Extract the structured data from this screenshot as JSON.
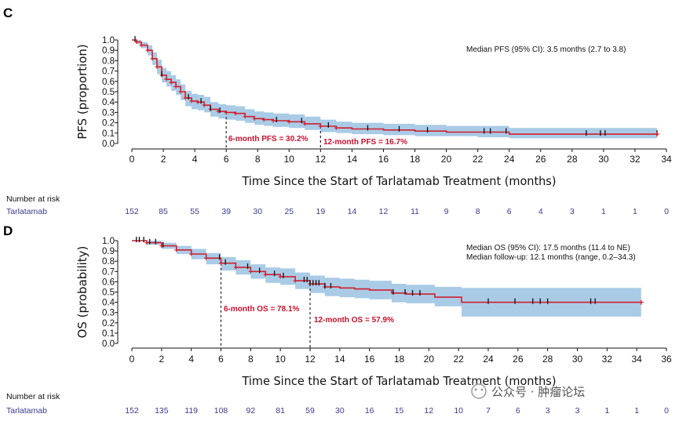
{
  "risk_table_title": "Number at risk",
  "watermark": "公众号 · 肿瘤论坛",
  "colors": {
    "curve": "#d21f2d",
    "band": "#a9cbe6",
    "censor": "#111111",
    "risk_text": "#3b3b8f"
  },
  "chart_data": [
    {
      "panel": "C",
      "type": "line",
      "subtype": "kaplan-meier",
      "xlabel": "Time Since the Start of Tarlatamab Treatment (months)",
      "ylabel": "PFS (proportion)",
      "xlim": [
        0,
        34
      ],
      "ylim": [
        0,
        1.0
      ],
      "xticks": [
        0,
        2,
        4,
        6,
        8,
        10,
        12,
        14,
        16,
        18,
        20,
        22,
        24,
        26,
        28,
        30,
        32,
        34
      ],
      "yticks": [
        0,
        0.1,
        0.2,
        0.3,
        0.4,
        0.5,
        0.6,
        0.7,
        0.8,
        0.9,
        1.0
      ],
      "annotations": [
        "Median PFS (95% CI): 3.5 months (2.7 to 3.8)"
      ],
      "milestones": [
        {
          "x": 6,
          "y": 0.302,
          "label": "6-month PFS = 30.2%"
        },
        {
          "x": 12,
          "y": 0.167,
          "label": "12-month PFS = 16.7%"
        }
      ],
      "series": [
        {
          "x": [
            0,
            0.3,
            0.6,
            1.0,
            1.3,
            1.6,
            1.9,
            2.2,
            2.5,
            2.8,
            3.1,
            3.4,
            3.8,
            4.2,
            4.6,
            5.0,
            5.5,
            6.0,
            6.6,
            7.2,
            7.8,
            8.4,
            9.0,
            10.0,
            11.0,
            12.0,
            13.0,
            14.0,
            16.0,
            18.0,
            20.0,
            22.0,
            24.0,
            26.0,
            28.0,
            30.0,
            32.0,
            33.4
          ],
          "y": [
            1.0,
            0.98,
            0.95,
            0.9,
            0.82,
            0.74,
            0.66,
            0.62,
            0.59,
            0.55,
            0.5,
            0.44,
            0.41,
            0.4,
            0.37,
            0.33,
            0.31,
            0.3,
            0.29,
            0.26,
            0.24,
            0.23,
            0.22,
            0.21,
            0.19,
            0.167,
            0.15,
            0.14,
            0.13,
            0.12,
            0.11,
            0.11,
            0.09,
            0.09,
            0.09,
            0.09,
            0.09,
            0.09
          ],
          "lower": [
            1.0,
            0.96,
            0.92,
            0.85,
            0.76,
            0.67,
            0.59,
            0.55,
            0.51,
            0.47,
            0.42,
            0.36,
            0.33,
            0.32,
            0.3,
            0.26,
            0.24,
            0.23,
            0.22,
            0.2,
            0.18,
            0.17,
            0.16,
            0.15,
            0.13,
            0.11,
            0.1,
            0.09,
            0.08,
            0.07,
            0.07,
            0.06,
            0.05,
            0.05,
            0.05,
            0.05,
            0.05,
            0.05
          ],
          "upper": [
            1.0,
            1.0,
            0.98,
            0.95,
            0.88,
            0.81,
            0.73,
            0.7,
            0.66,
            0.62,
            0.57,
            0.51,
            0.48,
            0.47,
            0.45,
            0.4,
            0.38,
            0.37,
            0.36,
            0.33,
            0.31,
            0.3,
            0.29,
            0.28,
            0.26,
            0.23,
            0.21,
            0.2,
            0.19,
            0.18,
            0.17,
            0.17,
            0.15,
            0.15,
            0.15,
            0.15,
            0.15,
            0.15
          ]
        }
      ],
      "censor_x": [
        0.2,
        1.9,
        3.6,
        4.4,
        5.0,
        5.6,
        9.2,
        10.8,
        12.5,
        15.0,
        17.0,
        18.8,
        22.4,
        22.8,
        23.8,
        28.9,
        29.8,
        30.1,
        33.4
      ],
      "risk_table": {
        "group": "Tarlatamab",
        "times": [
          0,
          2,
          4,
          6,
          8,
          10,
          12,
          14,
          16,
          18,
          20,
          22,
          24,
          26,
          28,
          30,
          32,
          34
        ],
        "counts": [
          "152",
          "85",
          "55",
          "39",
          "30",
          "25",
          "19",
          "14",
          "12",
          "11",
          "9",
          "8",
          "6",
          "4",
          "3",
          "1",
          "1",
          "0"
        ]
      }
    },
    {
      "panel": "D",
      "type": "line",
      "subtype": "kaplan-meier",
      "xlabel": "Time Since the Start of Tarlatamab Treatment (months)",
      "ylabel": "OS (probability)",
      "xlim": [
        0,
        36
      ],
      "ylim": [
        0,
        1.0
      ],
      "xticks": [
        0,
        2,
        4,
        6,
        8,
        10,
        12,
        14,
        16,
        18,
        20,
        22,
        24,
        26,
        28,
        30,
        32,
        34,
        36
      ],
      "yticks": [
        0,
        0.1,
        0.2,
        0.3,
        0.4,
        0.5,
        0.6,
        0.7,
        0.8,
        0.9,
        1.0
      ],
      "annotations": [
        "Median OS (95% CI): 17.5 months (11.4 to NE)",
        "Median follow-up: 12.1 months (range, 0.2–34.3)"
      ],
      "milestones": [
        {
          "x": 6,
          "y": 0.781,
          "label": "6-month OS = 78.1%"
        },
        {
          "x": 12,
          "y": 0.579,
          "label": "12-month OS = 57.9%"
        }
      ],
      "series": [
        {
          "x": [
            0,
            1.0,
            2.0,
            3.0,
            4.0,
            5.0,
            6.0,
            7.0,
            8.0,
            9.0,
            10.0,
            11.0,
            12.0,
            13.0,
            14.0,
            15.0,
            16.0,
            17.5,
            18.5,
            20.4,
            22.2,
            24.0,
            26.0,
            28.0,
            30.0,
            32.0,
            34.3
          ],
          "y": [
            1.0,
            0.98,
            0.95,
            0.91,
            0.87,
            0.83,
            0.781,
            0.74,
            0.7,
            0.67,
            0.65,
            0.61,
            0.579,
            0.55,
            0.54,
            0.53,
            0.52,
            0.49,
            0.48,
            0.45,
            0.4,
            0.4,
            0.4,
            0.4,
            0.4,
            0.4,
            0.4
          ],
          "lower": [
            1.0,
            0.96,
            0.92,
            0.87,
            0.82,
            0.77,
            0.71,
            0.67,
            0.63,
            0.59,
            0.57,
            0.53,
            0.49,
            0.46,
            0.45,
            0.44,
            0.43,
            0.4,
            0.39,
            0.36,
            0.26,
            0.26,
            0.26,
            0.26,
            0.26,
            0.26,
            0.26
          ],
          "upper": [
            1.0,
            1.0,
            0.98,
            0.95,
            0.92,
            0.88,
            0.84,
            0.81,
            0.77,
            0.74,
            0.73,
            0.69,
            0.66,
            0.64,
            0.63,
            0.62,
            0.61,
            0.58,
            0.57,
            0.55,
            0.54,
            0.54,
            0.54,
            0.54,
            0.54,
            0.54,
            0.54
          ]
        }
      ],
      "censor_x": [
        0.3,
        0.5,
        0.8,
        1.2,
        1.6,
        2.1,
        5.9,
        6.3,
        7.8,
        8.6,
        9.6,
        10.2,
        11.6,
        11.8,
        12.0,
        12.2,
        12.4,
        12.6,
        13.0,
        13.4,
        17.6,
        18.4,
        18.9,
        19.4,
        24.0,
        25.8,
        27.0,
        27.5,
        28.0,
        30.9,
        31.2
      ]
    }
  ],
  "risk_table_D": {
    "group": "Tarlatamab",
    "times": [
      0,
      2,
      4,
      6,
      8,
      10,
      12,
      14,
      16,
      18,
      20,
      22,
      24,
      26,
      28,
      30,
      32,
      34,
      36
    ],
    "counts": [
      "152",
      "135",
      "119",
      "108",
      "92",
      "81",
      "59",
      "30",
      "16",
      "15",
      "12",
      "10",
      "7",
      "6",
      "3",
      "3",
      "1",
      "1",
      "0"
    ]
  }
}
